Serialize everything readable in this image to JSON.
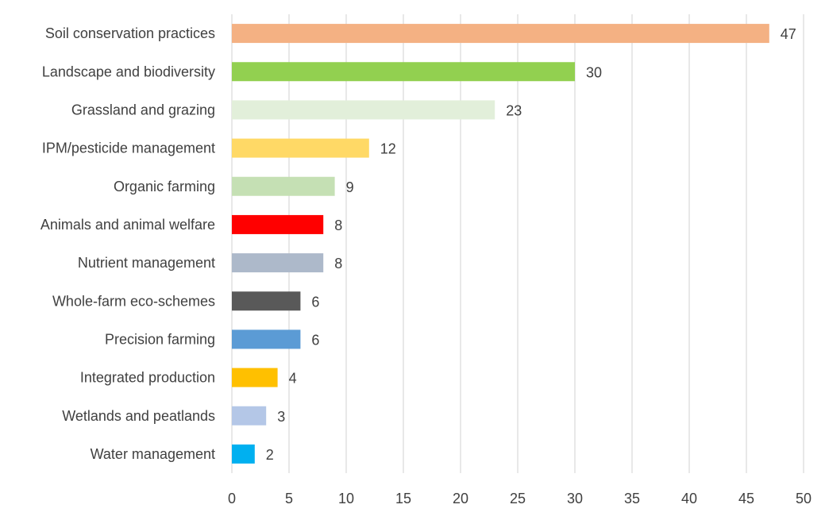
{
  "chart_data": {
    "type": "bar",
    "orientation": "horizontal",
    "title": "",
    "xlabel": "",
    "ylabel": "",
    "xlim": [
      0,
      50
    ],
    "xticks": [
      0,
      5,
      10,
      15,
      20,
      25,
      30,
      35,
      40,
      45,
      50
    ],
    "grid": "vertical",
    "legend": "none",
    "categories": [
      "Soil conservation practices",
      "Landscape and biodiversity",
      "Grassland and grazing",
      "IPM/pesticide management",
      "Organic farming",
      "Animals and animal welfare",
      "Nutrient management",
      "Whole-farm eco-schemes",
      "Precision farming",
      "Integrated production",
      "Wetlands and peatlands",
      "Water management"
    ],
    "values": [
      47,
      30,
      23,
      12,
      9,
      8,
      8,
      6,
      6,
      4,
      3,
      2
    ],
    "colors": [
      "#f4b183",
      "#92d050",
      "#e2efda",
      "#ffd966",
      "#c5e0b4",
      "#ff0000",
      "#adb9ca",
      "#595959",
      "#5b9bd5",
      "#ffc000",
      "#b4c7e7",
      "#00b0f0"
    ]
  }
}
